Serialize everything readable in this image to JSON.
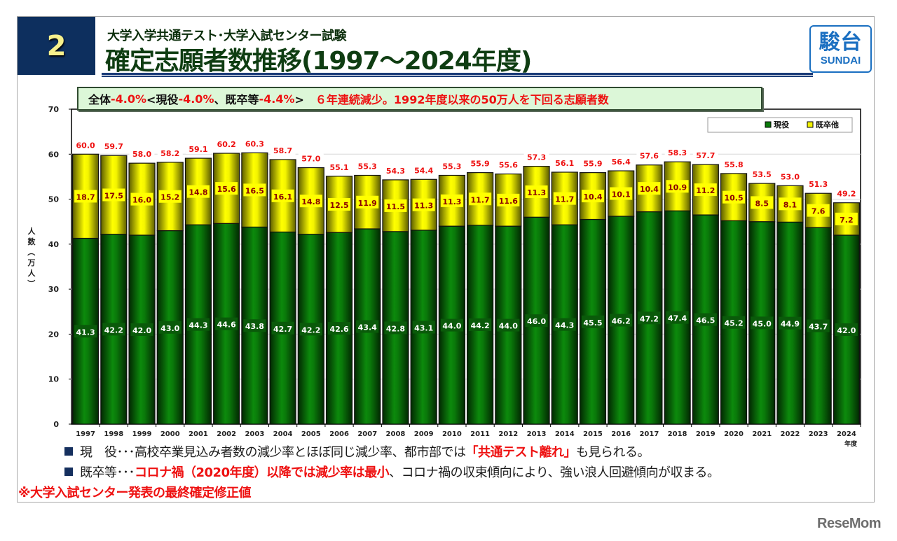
{
  "header": {
    "section_number": "2",
    "subtitle": "大学入学共通テスト･大学入試センター試験",
    "title": "確定志願者数推移(1997～2024年度)",
    "logo_kanji": "駿台",
    "logo_latin": "SUNDAI"
  },
  "summary": {
    "parts": [
      {
        "text": "全体 ",
        "style": "blk"
      },
      {
        "text": "-4.0%",
        "style": "red"
      },
      {
        "text": " <現役 ",
        "style": "blk"
      },
      {
        "text": "-4.0%",
        "style": "red"
      },
      {
        "text": "、既卒等 ",
        "style": "blk"
      },
      {
        "text": "-4.4%",
        "style": "red"
      },
      {
        "text": ">　 ",
        "style": "blk"
      },
      {
        "text": "６年連続減少。1992年度以来の50万人を下回る志願者数",
        "style": "red"
      }
    ]
  },
  "chart_data": {
    "type": "bar",
    "stacked": true,
    "title": "確定志願者数推移(1997～2024年度)",
    "xlabel": "年度",
    "ylabel": "人数（万人）",
    "ylim": [
      0,
      70
    ],
    "yticks": [
      0,
      10,
      20,
      30,
      40,
      50,
      60,
      70
    ],
    "grid": true,
    "legend_position": "top-right",
    "categories": [
      "1997",
      "1998",
      "1999",
      "2000",
      "2001",
      "2002",
      "2003",
      "2004",
      "2005",
      "2006",
      "2007",
      "2008",
      "2009",
      "2010",
      "2011",
      "2012",
      "2013",
      "2014",
      "2015",
      "2016",
      "2017",
      "2018",
      "2019",
      "2020",
      "2021",
      "2022",
      "2023",
      "2024"
    ],
    "series": [
      {
        "name": "現役",
        "color": "#0a7a0a",
        "values": [
          41.3,
          42.2,
          42.0,
          43.0,
          44.3,
          44.6,
          43.8,
          42.7,
          42.2,
          42.6,
          43.4,
          42.8,
          43.1,
          44.0,
          44.2,
          44.0,
          46.0,
          44.3,
          45.5,
          46.2,
          47.2,
          47.4,
          46.5,
          45.2,
          45.0,
          44.9,
          43.7,
          42.0
        ]
      },
      {
        "name": "既卒他",
        "color": "#f2f200",
        "values": [
          18.7,
          17.5,
          16.0,
          15.2,
          14.8,
          15.6,
          16.5,
          16.1,
          14.8,
          12.5,
          11.9,
          11.5,
          11.3,
          11.3,
          11.7,
          11.6,
          11.3,
          11.7,
          10.4,
          10.1,
          10.4,
          10.9,
          11.2,
          10.5,
          8.5,
          8.1,
          7.6,
          7.2
        ]
      }
    ],
    "totals": [
      60.0,
      59.7,
      58.0,
      58.2,
      59.1,
      60.2,
      60.3,
      58.7,
      57.0,
      55.1,
      55.3,
      54.3,
      54.4,
      55.3,
      55.9,
      55.6,
      57.3,
      56.1,
      55.9,
      56.4,
      57.6,
      58.3,
      57.7,
      55.8,
      53.5,
      53.0,
      51.3,
      49.2
    ],
    "colors": {
      "total_label": "#ee1111",
      "yellow_label": "#8a0000",
      "green_label": "#ffffff"
    }
  },
  "notes": [
    {
      "parts": [
        {
          "text": "現　役･･･高校卒業見込み者数の減少率とほぼ同じ減少率、都市部では",
          "hl": false
        },
        {
          "text": "「共通テスト離れ」",
          "hl": true
        },
        {
          "text": "も見られる。",
          "hl": false
        }
      ]
    },
    {
      "parts": [
        {
          "text": "既卒等･･･",
          "hl": false
        },
        {
          "text": "コロナ禍（2020年度）以降では減少率は最小",
          "hl": true
        },
        {
          "text": "、コロナ禍の収束傾向により、強い浪人回避傾向が収まる。",
          "hl": false
        }
      ]
    }
  ],
  "footnote": "※大学入試センター発表の最終確定修正値",
  "watermark": "ReseMom"
}
